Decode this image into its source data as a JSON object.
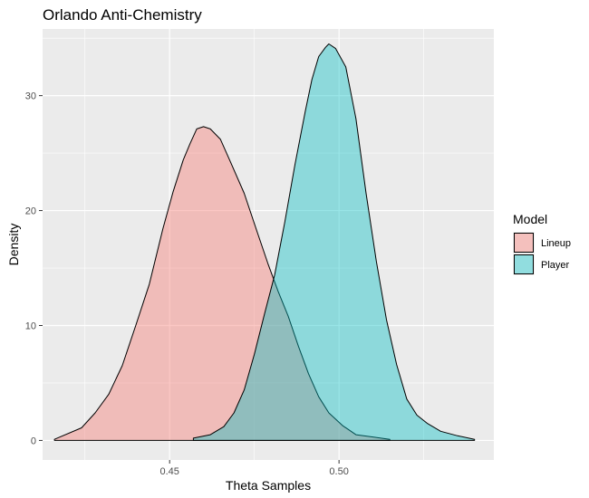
{
  "chart_data": {
    "type": "area",
    "title": "Orlando Anti-Chemistry",
    "xlabel": "Theta Samples",
    "ylabel": "Density",
    "xlim": [
      0.4125,
      0.5457
    ],
    "ylim": [
      -1.7,
      35.8
    ],
    "x_ticks": [
      0.45,
      0.5
    ],
    "x_tick_labels": [
      "0.45",
      "0.50"
    ],
    "y_ticks": [
      0,
      10,
      20,
      30
    ],
    "y_tick_labels": [
      "0",
      "10",
      "20",
      "30"
    ],
    "grid": true,
    "legend": {
      "title": "Model",
      "position": "right"
    },
    "series": [
      {
        "name": "Lineup",
        "fill": "#F8766D",
        "points": [
          [
            0.416,
            0.1
          ],
          [
            0.424,
            1.1
          ],
          [
            0.428,
            2.4
          ],
          [
            0.432,
            4.0
          ],
          [
            0.436,
            6.5
          ],
          [
            0.44,
            10.0
          ],
          [
            0.444,
            13.6
          ],
          [
            0.448,
            18.4
          ],
          [
            0.451,
            21.6
          ],
          [
            0.454,
            24.4
          ],
          [
            0.456,
            25.8
          ],
          [
            0.458,
            27.1
          ],
          [
            0.46,
            27.3
          ],
          [
            0.462,
            27.1
          ],
          [
            0.465,
            26.2
          ],
          [
            0.468,
            24.2
          ],
          [
            0.472,
            21.5
          ],
          [
            0.476,
            18.0
          ],
          [
            0.479,
            15.4
          ],
          [
            0.482,
            13.0
          ],
          [
            0.485,
            10.8
          ],
          [
            0.488,
            8.2
          ],
          [
            0.491,
            5.8
          ],
          [
            0.494,
            3.8
          ],
          [
            0.497,
            2.4
          ],
          [
            0.501,
            1.3
          ],
          [
            0.505,
            0.5
          ],
          [
            0.51,
            0.3
          ],
          [
            0.515,
            0.1
          ]
        ]
      },
      {
        "name": "Player",
        "fill": "#00BFC4",
        "points": [
          [
            0.457,
            0.2
          ],
          [
            0.462,
            0.5
          ],
          [
            0.466,
            1.2
          ],
          [
            0.469,
            2.4
          ],
          [
            0.472,
            4.4
          ],
          [
            0.475,
            7.5
          ],
          [
            0.478,
            11.0
          ],
          [
            0.481,
            14.4
          ],
          [
            0.484,
            19.0
          ],
          [
            0.487,
            24.0
          ],
          [
            0.49,
            28.6
          ],
          [
            0.492,
            31.4
          ],
          [
            0.494,
            33.4
          ],
          [
            0.496,
            34.2
          ],
          [
            0.497,
            34.5
          ],
          [
            0.499,
            34.1
          ],
          [
            0.502,
            32.5
          ],
          [
            0.505,
            28.0
          ],
          [
            0.508,
            21.5
          ],
          [
            0.511,
            15.6
          ],
          [
            0.514,
            10.5
          ],
          [
            0.517,
            6.6
          ],
          [
            0.52,
            3.6
          ],
          [
            0.523,
            2.2
          ],
          [
            0.526,
            1.5
          ],
          [
            0.53,
            0.8
          ],
          [
            0.535,
            0.4
          ],
          [
            0.54,
            0.1
          ]
        ]
      }
    ]
  }
}
